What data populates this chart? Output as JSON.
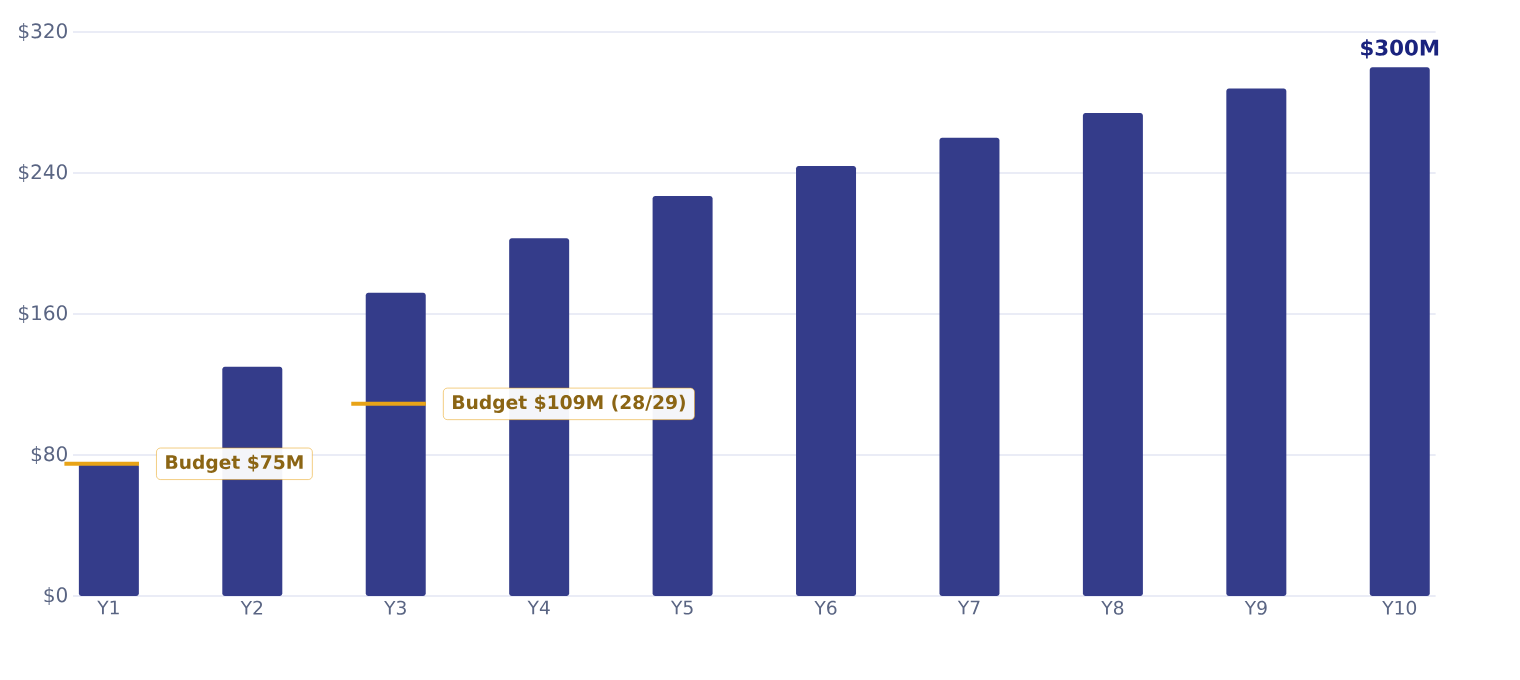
{
  "chart_data": {
    "type": "bar",
    "categories": [
      "Y1",
      "Y2",
      "Y3",
      "Y4",
      "Y5",
      "Y6",
      "Y7",
      "Y8",
      "Y9",
      "Y10"
    ],
    "values": [
      75,
      130,
      172,
      203,
      227,
      244,
      260,
      274,
      288,
      300
    ],
    "color": "#343c8a",
    "value_labels": [
      null,
      null,
      null,
      null,
      null,
      null,
      null,
      null,
      null,
      "$300M"
    ],
    "ylim": [
      0,
      320
    ],
    "yticks": [
      {
        "value": 0,
        "label": "$0"
      },
      {
        "value": 80,
        "label": "$80"
      },
      {
        "value": 160,
        "label": "$160"
      },
      {
        "value": 240,
        "label": "$240"
      },
      {
        "value": 320,
        "label": "$320"
      }
    ],
    "grid": "y",
    "ref_lines": [
      {
        "axis": "y",
        "value": 75,
        "label": "Budget $75M",
        "color": "#e8a317"
      },
      {
        "axis": "y",
        "value": 109,
        "label": "Budget $109M (28/29)",
        "color": "#e8a317"
      }
    ]
  }
}
